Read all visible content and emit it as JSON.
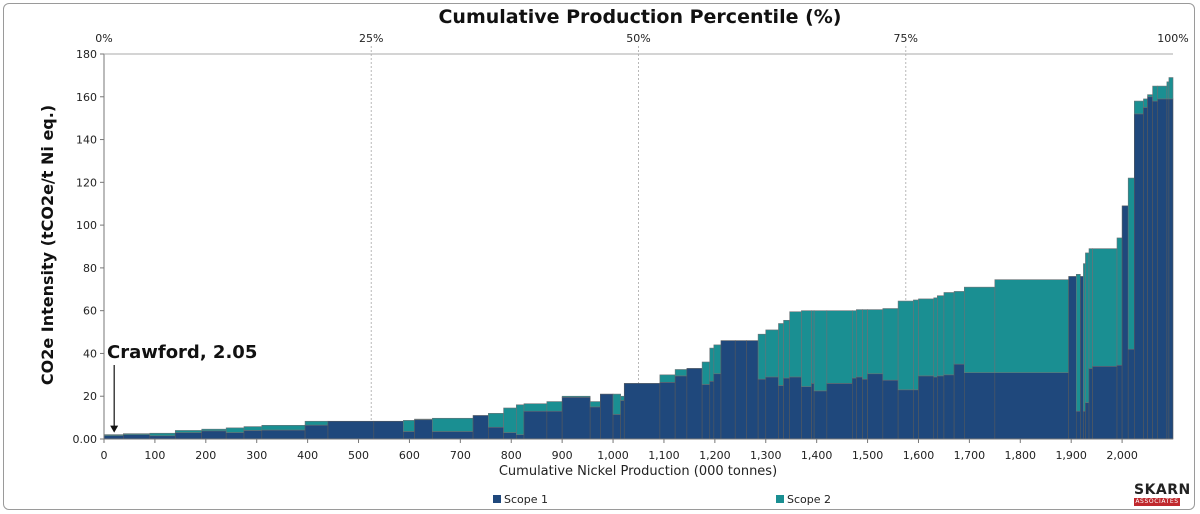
{
  "chart_data": {
    "type": "bar",
    "subtype": "cost-curve (variable-width stacked bars)",
    "title": "Cumulative Production Percentile (%)",
    "xlabel": "Cumulative Nickel Production (000 tonnes)",
    "ylabel": "CO2e Intensity (tCO2e/t Ni eq.)",
    "xlim": [
      0,
      2100
    ],
    "ylim": [
      0,
      180
    ],
    "x_ticks": [
      0,
      100,
      200,
      300,
      400,
      500,
      600,
      700,
      800,
      900,
      1000,
      1100,
      1200,
      1300,
      1400,
      1500,
      1600,
      1700,
      1800,
      1900,
      2000
    ],
    "x_tick_labels": [
      "0",
      "100",
      "200",
      "300",
      "400",
      "500",
      "600",
      "700",
      "800",
      "900",
      "1,000",
      "1,100",
      "1,200",
      "1,300",
      "1,400",
      "1,500",
      "1,600",
      "1,700",
      "1,800",
      "1,900",
      "2,000"
    ],
    "y_ticks": [
      0,
      20,
      40,
      60,
      80,
      100,
      120,
      140,
      160,
      180
    ],
    "y_tick_labels": [
      "0.00",
      "20",
      "40",
      "60",
      "80",
      "100",
      "120",
      "140",
      "160",
      "180"
    ],
    "percentile_ticks": [
      {
        "x": 0,
        "label": "0%"
      },
      {
        "x": 525,
        "label": "25%"
      },
      {
        "x": 1050,
        "label": "50%"
      },
      {
        "x": 1575,
        "label": "75%"
      },
      {
        "x": 2100,
        "label": "100%"
      }
    ],
    "series": [
      {
        "name": "Scope 1",
        "color": "#1f487c"
      },
      {
        "name": "Scope 2",
        "color": "#1a8f92"
      }
    ],
    "bars": [
      {
        "x0": 0,
        "x1": 38,
        "s1": 1.6,
        "s2": 0.45
      },
      {
        "x0": 38,
        "x1": 90,
        "s1": 2.0,
        "s2": 0.5
      },
      {
        "x0": 90,
        "x1": 140,
        "s1": 1.5,
        "s2": 1.2
      },
      {
        "x0": 140,
        "x1": 192,
        "s1": 3.0,
        "s2": 1.0
      },
      {
        "x0": 192,
        "x1": 240,
        "s1": 3.8,
        "s2": 0.8
      },
      {
        "x0": 240,
        "x1": 275,
        "s1": 3.0,
        "s2": 2.2
      },
      {
        "x0": 275,
        "x1": 310,
        "s1": 4.0,
        "s2": 1.8
      },
      {
        "x0": 310,
        "x1": 395,
        "s1": 4.2,
        "s2": 2.2
      },
      {
        "x0": 395,
        "x1": 440,
        "s1": 6.5,
        "s2": 1.8
      },
      {
        "x0": 440,
        "x1": 530,
        "s1": 8.3,
        "s2": 0.0
      },
      {
        "x0": 530,
        "x1": 588,
        "s1": 8.3,
        "s2": 0.0
      },
      {
        "x0": 588,
        "x1": 610,
        "s1": 3.5,
        "s2": 5.2
      },
      {
        "x0": 610,
        "x1": 645,
        "s1": 9.0,
        "s2": 0.3
      },
      {
        "x0": 645,
        "x1": 725,
        "s1": 3.5,
        "s2": 6.2
      },
      {
        "x0": 725,
        "x1": 755,
        "s1": 11.0,
        "s2": 0.0
      },
      {
        "x0": 755,
        "x1": 785,
        "s1": 5.5,
        "s2": 6.5
      },
      {
        "x0": 785,
        "x1": 810,
        "s1": 3.0,
        "s2": 11.5
      },
      {
        "x0": 810,
        "x1": 825,
        "s1": 2.0,
        "s2": 14.0
      },
      {
        "x0": 825,
        "x1": 870,
        "s1": 13.0,
        "s2": 3.5
      },
      {
        "x0": 870,
        "x1": 900,
        "s1": 13.0,
        "s2": 4.5
      },
      {
        "x0": 900,
        "x1": 955,
        "s1": 19.5,
        "s2": 0.5
      },
      {
        "x0": 955,
        "x1": 975,
        "s1": 15.0,
        "s2": 2.5
      },
      {
        "x0": 975,
        "x1": 1000,
        "s1": 21.0,
        "s2": 0.0
      },
      {
        "x0": 1000,
        "x1": 1015,
        "s1": 11.5,
        "s2": 9.5
      },
      {
        "x0": 1015,
        "x1": 1022,
        "s1": 18.0,
        "s2": 2.0
      },
      {
        "x0": 1022,
        "x1": 1092,
        "s1": 26.0,
        "s2": 0.0
      },
      {
        "x0": 1092,
        "x1": 1122,
        "s1": 26.5,
        "s2": 3.5
      },
      {
        "x0": 1122,
        "x1": 1145,
        "s1": 29.5,
        "s2": 3.0
      },
      {
        "x0": 1145,
        "x1": 1175,
        "s1": 33.0,
        "s2": 0.0
      },
      {
        "x0": 1175,
        "x1": 1190,
        "s1": 25.5,
        "s2": 10.5
      },
      {
        "x0": 1190,
        "x1": 1198,
        "s1": 27.0,
        "s2": 15.5
      },
      {
        "x0": 1198,
        "x1": 1212,
        "s1": 30.5,
        "s2": 13.5
      },
      {
        "x0": 1212,
        "x1": 1240,
        "s1": 46.0,
        "s2": 0.0
      },
      {
        "x0": 1240,
        "x1": 1262,
        "s1": 46.0,
        "s2": 0.0
      },
      {
        "x0": 1262,
        "x1": 1285,
        "s1": 46.0,
        "s2": 0.0
      },
      {
        "x0": 1285,
        "x1": 1300,
        "s1": 28.0,
        "s2": 21.0
      },
      {
        "x0": 1300,
        "x1": 1325,
        "s1": 29.0,
        "s2": 22.0
      },
      {
        "x0": 1325,
        "x1": 1335,
        "s1": 25.0,
        "s2": 29.0
      },
      {
        "x0": 1335,
        "x1": 1347,
        "s1": 28.5,
        "s2": 27.0
      },
      {
        "x0": 1347,
        "x1": 1370,
        "s1": 29.0,
        "s2": 30.5
      },
      {
        "x0": 1370,
        "x1": 1390,
        "s1": 24.5,
        "s2": 35.5
      },
      {
        "x0": 1390,
        "x1": 1395,
        "s1": 26.0,
        "s2": 34.0
      },
      {
        "x0": 1395,
        "x1": 1420,
        "s1": 22.5,
        "s2": 37.5
      },
      {
        "x0": 1420,
        "x1": 1470,
        "s1": 26.0,
        "s2": 34.0
      },
      {
        "x0": 1470,
        "x1": 1478,
        "s1": 28.5,
        "s2": 31.5
      },
      {
        "x0": 1478,
        "x1": 1490,
        "s1": 29.0,
        "s2": 31.5
      },
      {
        "x0": 1490,
        "x1": 1500,
        "s1": 28.0,
        "s2": 32.5
      },
      {
        "x0": 1500,
        "x1": 1530,
        "s1": 30.5,
        "s2": 30.0
      },
      {
        "x0": 1530,
        "x1": 1560,
        "s1": 27.5,
        "s2": 33.5
      },
      {
        "x0": 1560,
        "x1": 1590,
        "s1": 23.0,
        "s2": 41.5
      },
      {
        "x0": 1590,
        "x1": 1600,
        "s1": 23.0,
        "s2": 42.0
      },
      {
        "x0": 1600,
        "x1": 1630,
        "s1": 29.5,
        "s2": 36.0
      },
      {
        "x0": 1630,
        "x1": 1637,
        "s1": 29.0,
        "s2": 37.0
      },
      {
        "x0": 1637,
        "x1": 1650,
        "s1": 29.5,
        "s2": 37.5
      },
      {
        "x0": 1650,
        "x1": 1670,
        "s1": 30.0,
        "s2": 38.5
      },
      {
        "x0": 1670,
        "x1": 1690,
        "s1": 35.0,
        "s2": 34.0
      },
      {
        "x0": 1690,
        "x1": 1750,
        "s1": 31.0,
        "s2": 40.0
      },
      {
        "x0": 1750,
        "x1": 1895,
        "s1": 31.0,
        "s2": 43.5
      },
      {
        "x0": 1895,
        "x1": 1910,
        "s1": 76.0,
        "s2": 0.0
      },
      {
        "x0": 1910,
        "x1": 1918,
        "s1": 13.0,
        "s2": 64.0
      },
      {
        "x0": 1918,
        "x1": 1924,
        "s1": 76.0,
        "s2": 0.0
      },
      {
        "x0": 1924,
        "x1": 1928,
        "s1": 13.0,
        "s2": 69.0
      },
      {
        "x0": 1928,
        "x1": 1935,
        "s1": 17.0,
        "s2": 70.0
      },
      {
        "x0": 1935,
        "x1": 1942,
        "s1": 33.0,
        "s2": 56.0
      },
      {
        "x0": 1942,
        "x1": 1990,
        "s1": 34.0,
        "s2": 55.0
      },
      {
        "x0": 1990,
        "x1": 2000,
        "s1": 34.5,
        "s2": 59.5
      },
      {
        "x0": 2000,
        "x1": 2012,
        "s1": 109.0,
        "s2": 0.0
      },
      {
        "x0": 2012,
        "x1": 2024,
        "s1": 42.0,
        "s2": 80.0
      },
      {
        "x0": 2024,
        "x1": 2042,
        "s1": 152.0,
        "s2": 6.0
      },
      {
        "x0": 2042,
        "x1": 2050,
        "s1": 155.0,
        "s2": 4.0
      },
      {
        "x0": 2050,
        "x1": 2060,
        "s1": 160.0,
        "s2": 1.0
      },
      {
        "x0": 2060,
        "x1": 2070,
        "s1": 158.0,
        "s2": 7.0
      },
      {
        "x0": 2070,
        "x1": 2088,
        "s1": 159.0,
        "s2": 6.0
      },
      {
        "x0": 2088,
        "x1": 2092,
        "s1": 159.0,
        "s2": 8.0
      },
      {
        "x0": 2092,
        "x1": 2100,
        "s1": 159.0,
        "s2": 10.0
      }
    ],
    "annotation": {
      "text": "Crawford, 2.05",
      "x": 20,
      "y": 2.05
    },
    "legend_position": "bottom",
    "grid": "vertical dashed lines at percentile marks"
  },
  "logo": {
    "top": "SKARN",
    "bottom": "ASSOCIATES"
  }
}
